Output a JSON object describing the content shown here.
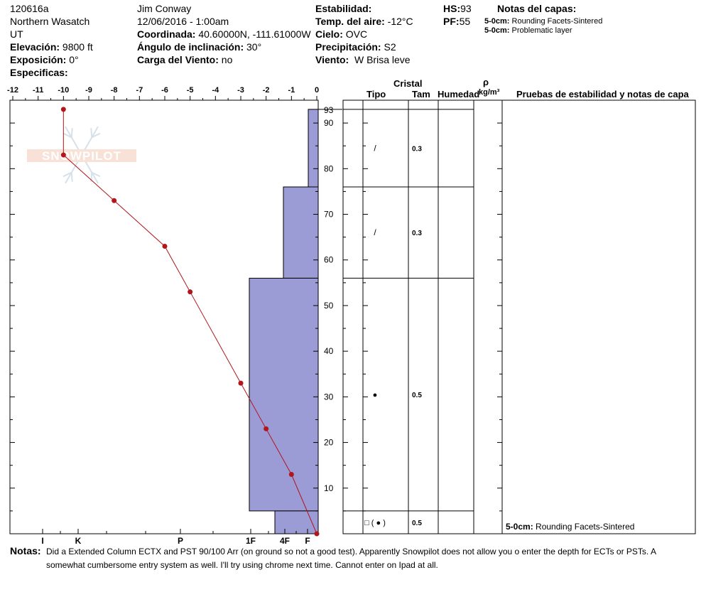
{
  "header": {
    "id": "120616a",
    "region": "Northern Wasatch",
    "state": "UT",
    "elev_label": "Elevación:",
    "elev_value": "9800 ft",
    "aspect_label": "Exposición:",
    "aspect_value": "0°",
    "specifics_label": "Especificas:",
    "observer": "Jim Conway",
    "datetime": "12/06/2016 - 1:00am",
    "coord_label": "Coordinada:",
    "coord_value": "40.60000N, -111.61000W",
    "incline_label": "Ángulo de inclinación:",
    "incline_value": "30°",
    "wind_load_label": "Carga del Viento:",
    "wind_load_value": "no",
    "stability_label": "Estabilidad:",
    "airtemp_label": "Temp. del aire:",
    "airtemp_value": "-12°C",
    "sky_label": "Cielo:",
    "sky_value": "OVC",
    "precip_label": "Precipitación:",
    "precip_value": "S2",
    "wind_label": "Viento:",
    "wind_value": "W Brisa leve",
    "hs_label": "HS:",
    "hs_value": "93",
    "pf_label": "PF:",
    "pf_value": "55",
    "layer_notes_title": "Notas del capas:",
    "layer_notes": [
      {
        "range": "5-0cm:",
        "text": "Rounding Facets-Sintered"
      },
      {
        "range": "5-0cm:",
        "text": "Problematic layer"
      }
    ]
  },
  "logo": {
    "text": "SNOWPILOT"
  },
  "table": {
    "cristal": "Cristal",
    "tipo": "Tipo",
    "tam": "Tam",
    "humedad": "Humedad",
    "rho": "ρ",
    "density_unit": "kg/m³",
    "tests_header": "Pruebas de estabilidad y notas de capa",
    "rows": [
      {
        "top": 93,
        "bottom": 76,
        "size": "0.3",
        "glyph": "/"
      },
      {
        "top": 76,
        "bottom": 56,
        "size": "0.3",
        "glyph": "/"
      },
      {
        "top": 56,
        "bottom": 5,
        "size": "0.5",
        "glyph": "●"
      },
      {
        "top": 5,
        "bottom": 0,
        "size": "0.5",
        "glyph": "□ ( ● )"
      }
    ],
    "bottom_note_range": "5-0cm:",
    "bottom_note_text": "Rounding Facets-Sintered"
  },
  "notes": {
    "label": "Notas:",
    "line1": "Did a Extended Column ECTX and PST 90/100 Arr (on ground so not a good test). Apparently Snowpilot does not allow you o enter the depth for ECTs or PSTs. A",
    "line2": "somewhat cumbersome entry system as well. I'll try using chrome next time. Cannot enter on Ipad at all."
  },
  "chart_data": {
    "type": "line",
    "title": "",
    "temp_axis": {
      "range": [
        -12,
        0
      ],
      "ticks": [
        "-12",
        "-11",
        "-10",
        "-9",
        "-8",
        "-7",
        "-6",
        "-5",
        "-4",
        "-3",
        "-2",
        "-1",
        "0"
      ]
    },
    "height_axis": {
      "range": [
        0,
        95
      ],
      "ticks": [
        "10",
        "20",
        "30",
        "40",
        "50",
        "60",
        "70",
        "80",
        "90"
      ],
      "top_label": "93"
    },
    "hardness_axis": {
      "labels": [
        "I",
        "K",
        "P",
        "1F",
        "4F",
        "F"
      ]
    },
    "temperature_profile": {
      "height": [
        93,
        83,
        73,
        63,
        53,
        33,
        23,
        13,
        0
      ],
      "temp": [
        -10,
        -10,
        -8,
        -6,
        -5,
        -3,
        -2,
        -1,
        0
      ]
    },
    "hardness_profile": [
      {
        "top": 93,
        "bottom": 76,
        "hardness": "F"
      },
      {
        "top": 76,
        "bottom": 56,
        "hardness": "4F-"
      },
      {
        "top": 56,
        "bottom": 5,
        "hardness": "1F+"
      },
      {
        "top": 5,
        "bottom": 0,
        "hardness": "4F+"
      }
    ],
    "colors": {
      "hardness_fill": "#9b9bd6",
      "temp_line": "#b0161b"
    }
  }
}
